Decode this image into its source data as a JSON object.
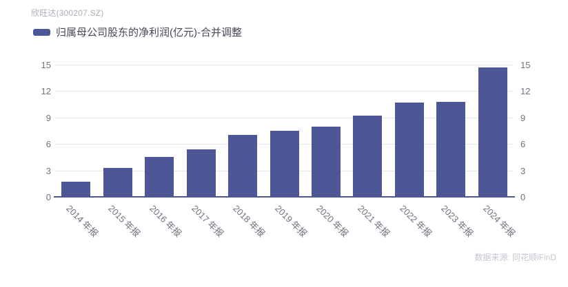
{
  "header": {
    "title": "欣旺达(300207.SZ)"
  },
  "legend": {
    "label": "归属母公司股东的净利润(亿元)-合并调整",
    "marker_color": "#4d5798"
  },
  "chart_data": {
    "type": "bar",
    "title": "欣旺达(300207.SZ)",
    "categories": [
      "2014 年报",
      "2015 年报",
      "2016 年报",
      "2017 年报",
      "2018 年报",
      "2019 年报",
      "2020 年报",
      "2021 年报",
      "2022 年报",
      "2023 年报",
      "2024 年报"
    ],
    "series": [
      {
        "name": "归属母公司股东的净利润(亿元)-合并调整",
        "values": [
          1.7,
          3.3,
          4.5,
          5.4,
          7.0,
          7.5,
          8.0,
          9.2,
          10.7,
          10.8,
          14.7
        ]
      }
    ],
    "xlabel": "",
    "ylabel": "",
    "ylim": [
      0,
      15
    ],
    "yticks": [
      0,
      3,
      6,
      9,
      12,
      15
    ],
    "grid": true,
    "dual_y_axis": true,
    "legend_position": "top-left",
    "x_label_rotation_deg": 45,
    "bar_color": "#4d5798",
    "grid_color": "#e0e7f0",
    "axis_line_color": "#4d5798",
    "tick_label_color": "#6f7380"
  },
  "footer": {
    "source": "数据来源: 同花顺iFinD"
  }
}
